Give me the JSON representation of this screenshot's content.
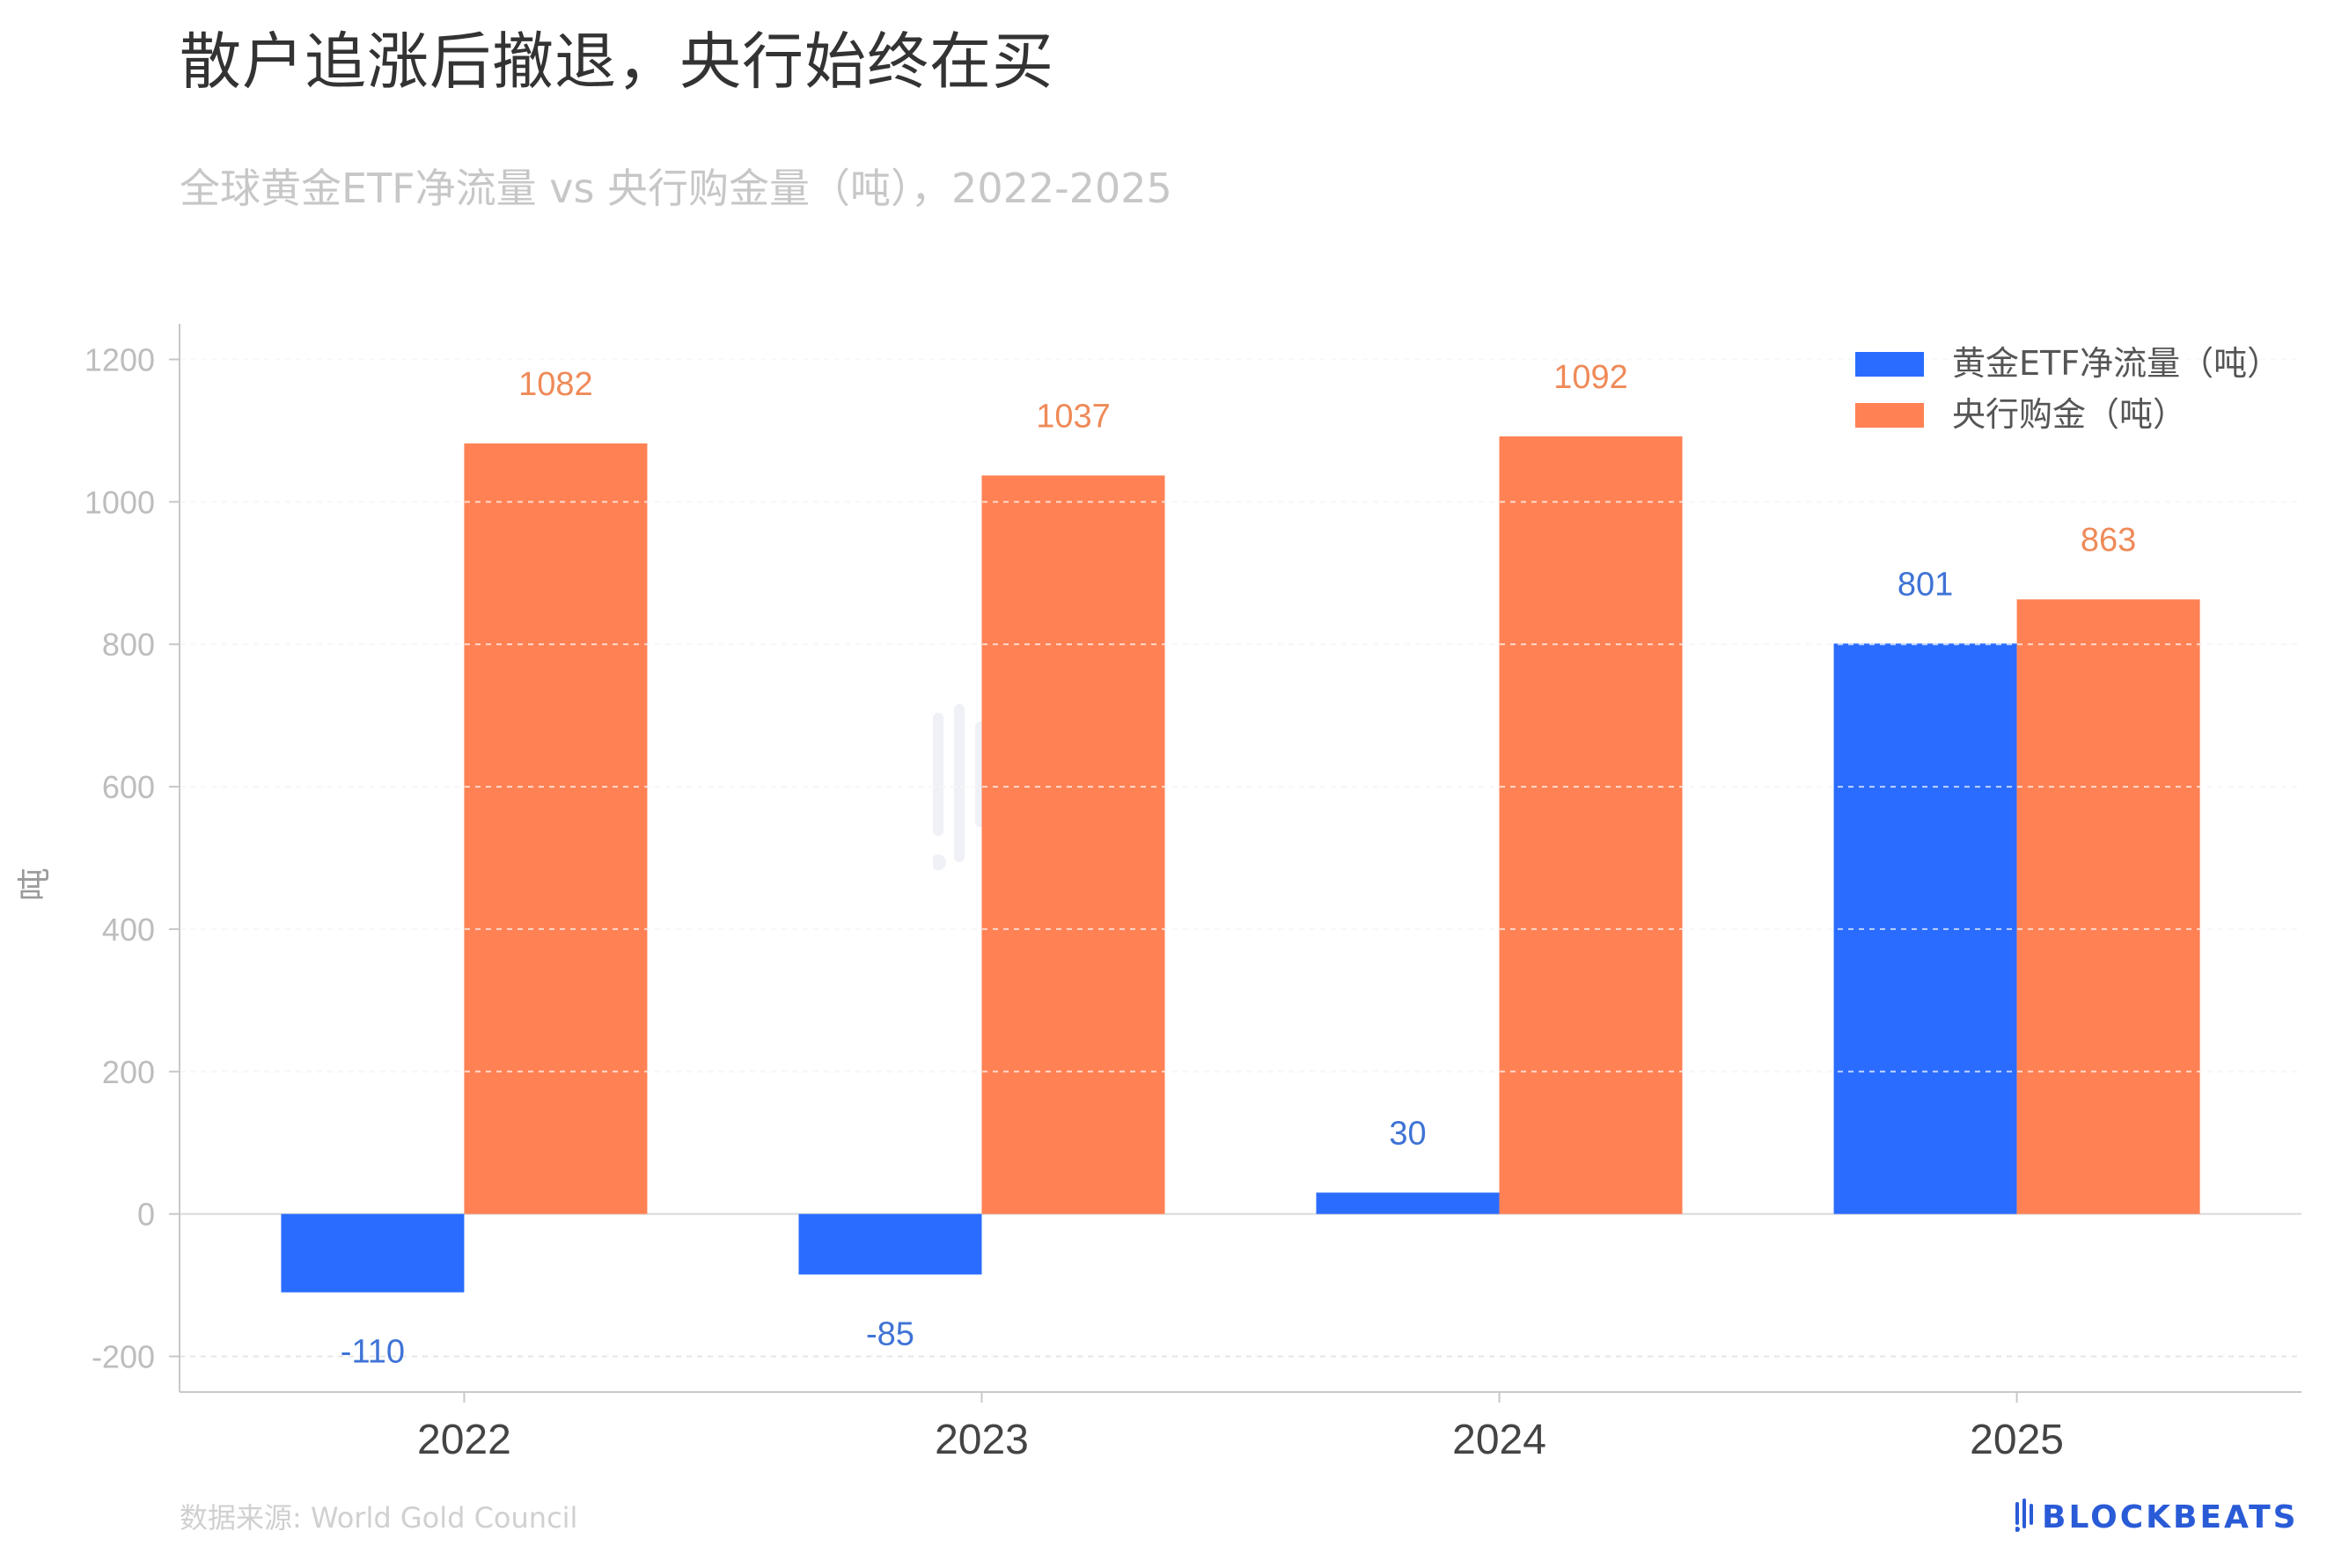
{
  "title": "散户追涨后撤退，央行始终在买",
  "subtitle": "全球黄金ETF净流量 vs 央行购金量（吨），2022-2025",
  "source": "数据来源: World Gold Council",
  "brand": {
    "name": "BLOCKBEATS",
    "watermark_cn": "律动",
    "icon": "blockbeats-logo-icon"
  },
  "colors": {
    "etf": "#2a6cff",
    "cb": "#ff8154",
    "etf_label": "#3f73d6",
    "cb_label": "#ef8a58",
    "axis": "#c8c8c8",
    "grid": "#e6e6e6"
  },
  "chart_data": {
    "type": "bar",
    "ylabel": "吨",
    "xlabel": "",
    "ylim": [
      -250,
      1250
    ],
    "yticks": [
      -200,
      0,
      200,
      400,
      600,
      800,
      1000,
      1200
    ],
    "categories": [
      "2022",
      "2023",
      "2024",
      "2025"
    ],
    "series": [
      {
        "name": "黄金ETF净流量（吨）",
        "values": [
          -110,
          -85,
          30,
          801
        ],
        "labels": [
          "-110",
          "-85",
          "30",
          "801"
        ]
      },
      {
        "name": "央行购金（吨）",
        "values": [
          1082,
          1037,
          1092,
          863
        ],
        "labels": [
          "1082",
          "1037",
          "1092",
          "863"
        ]
      }
    ],
    "legend": "top-right",
    "grid": true
  }
}
